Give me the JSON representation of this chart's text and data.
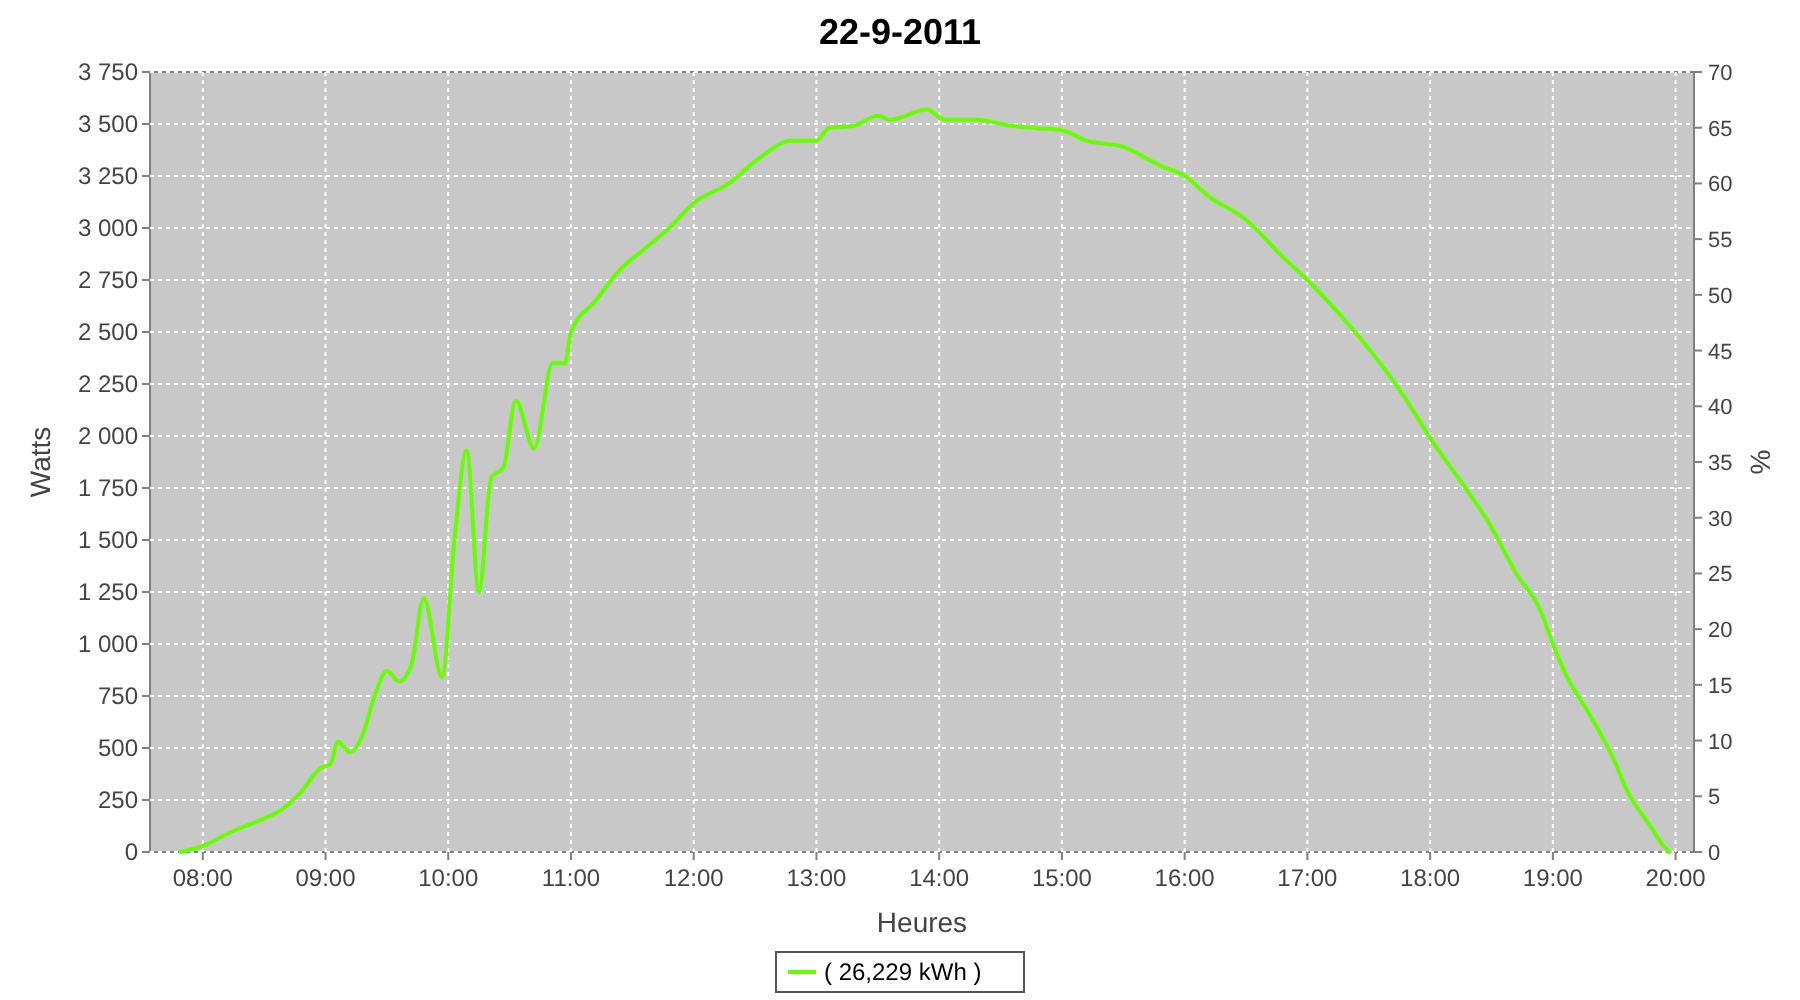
{
  "chart_data": {
    "type": "line",
    "title": "22-9-2011",
    "xlabel": "Heures",
    "ylabel": "Watts",
    "y2label": "%",
    "xlim": [
      7.57,
      20.15
    ],
    "xticks": [
      {
        "value": 8,
        "label": "08:00"
      },
      {
        "value": 9,
        "label": "09:00"
      },
      {
        "value": 10,
        "label": "10:00"
      },
      {
        "value": 11,
        "label": "11:00"
      },
      {
        "value": 12,
        "label": "12:00"
      },
      {
        "value": 13,
        "label": "13:00"
      },
      {
        "value": 14,
        "label": "14:00"
      },
      {
        "value": 15,
        "label": "15:00"
      },
      {
        "value": 16,
        "label": "16:00"
      },
      {
        "value": 17,
        "label": "17:00"
      },
      {
        "value": 18,
        "label": "18:00"
      },
      {
        "value": 19,
        "label": "19:00"
      },
      {
        "value": 20,
        "label": "20:00"
      }
    ],
    "ylim": [
      0,
      3750
    ],
    "yticks": [
      0,
      250,
      500,
      750,
      {
        "value": 1000,
        "label": "1 000"
      },
      {
        "value": 1250,
        "label": "1 250"
      },
      {
        "value": 1500,
        "label": "1 500"
      },
      {
        "value": 1750,
        "label": "1 750"
      },
      {
        "value": 2000,
        "label": "2 000"
      },
      {
        "value": 2250,
        "label": "2 250"
      },
      {
        "value": 2500,
        "label": "2 500"
      },
      {
        "value": 2750,
        "label": "2 750"
      },
      {
        "value": 3000,
        "label": "3 000"
      },
      {
        "value": 3250,
        "label": "3 250"
      },
      {
        "value": 3500,
        "label": "3 500"
      },
      {
        "value": 3750,
        "label": "3 750"
      }
    ],
    "y2lim": [
      0,
      70
    ],
    "y2ticks": [
      0,
      5,
      10,
      15,
      20,
      25,
      30,
      35,
      40,
      45,
      50,
      55,
      60,
      65,
      70
    ],
    "grid": true,
    "legend": "bottom",
    "line_style": "solid",
    "series": [
      {
        "name": "( 26,229 kWh )",
        "color": "#66ff00",
        "x": [
          7.82,
          8.0,
          8.23,
          8.47,
          8.64,
          8.8,
          8.96,
          9.04,
          9.1,
          9.2,
          9.3,
          9.4,
          9.5,
          9.6,
          9.7,
          9.8,
          9.95,
          10.05,
          10.15,
          10.25,
          10.35,
          10.45,
          10.55,
          10.7,
          10.85,
          10.95,
          11.0,
          11.2,
          11.4,
          11.6,
          11.8,
          12.0,
          12.3,
          12.5,
          12.8,
          13.0,
          13.1,
          13.3,
          13.5,
          13.6,
          13.9,
          14.05,
          14.3,
          14.6,
          14.8,
          15.0,
          15.2,
          15.5,
          15.8,
          16.0,
          16.2,
          16.5,
          16.8,
          17.0,
          17.3,
          17.5,
          17.8,
          18.0,
          18.3,
          18.5,
          18.7,
          18.9,
          19.0,
          19.1,
          19.3,
          19.5,
          19.6,
          19.8,
          19.9,
          19.95
        ],
        "values": [
          0,
          29,
          96,
          154,
          202,
          288,
          404,
          423,
          530,
          480,
          560,
          750,
          870,
          820,
          900,
          1220,
          840,
          1500,
          1930,
          1250,
          1800,
          1850,
          2170,
          1940,
          2350,
          2350,
          2500,
          2650,
          2800,
          2900,
          3000,
          3120,
          3220,
          3320,
          3420,
          3420,
          3480,
          3490,
          3540,
          3520,
          3570,
          3520,
          3520,
          3490,
          3480,
          3470,
          3420,
          3390,
          3300,
          3250,
          3150,
          3040,
          2860,
          2750,
          2560,
          2420,
          2180,
          1990,
          1740,
          1560,
          1340,
          1160,
          1000,
          860,
          660,
          440,
          300,
          120,
          30,
          0
        ]
      }
    ]
  }
}
